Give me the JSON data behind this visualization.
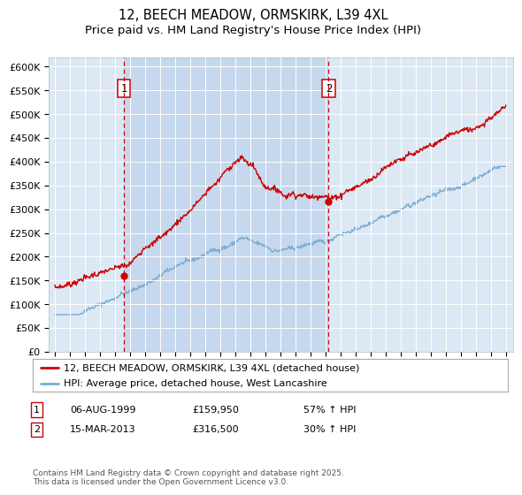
{
  "title": "12, BEECH MEADOW, ORMSKIRK, L39 4XL",
  "subtitle": "Price paid vs. HM Land Registry's House Price Index (HPI)",
  "ylim": [
    0,
    620000
  ],
  "yticks": [
    0,
    50000,
    100000,
    150000,
    200000,
    250000,
    300000,
    350000,
    400000,
    450000,
    500000,
    550000,
    600000
  ],
  "ytick_labels": [
    "£0",
    "£50K",
    "£100K",
    "£150K",
    "£200K",
    "£250K",
    "£300K",
    "£350K",
    "£400K",
    "£450K",
    "£500K",
    "£550K",
    "£600K"
  ],
  "background_color": "#dce9f5",
  "line1_color": "#cc0000",
  "line2_color": "#7aadd4",
  "shade_color": "#c5d8ed",
  "marker1_date": 1999.59,
  "marker2_date": 2013.21,
  "legend_line1": "12, BEECH MEADOW, ORMSKIRK, L39 4XL (detached house)",
  "legend_line2": "HPI: Average price, detached house, West Lancashire",
  "annotation1_date": "06-AUG-1999",
  "annotation1_price": "£159,950",
  "annotation1_hpi": "57% ↑ HPI",
  "annotation2_date": "15-MAR-2013",
  "annotation2_price": "£316,500",
  "annotation2_hpi": "30% ↑ HPI",
  "footnote": "Contains HM Land Registry data © Crown copyright and database right 2025.\nThis data is licensed under the Open Government Licence v3.0.",
  "title_fontsize": 10.5,
  "subtitle_fontsize": 9.5,
  "tick_fontsize": 8,
  "xlim_start": 1994.6,
  "xlim_end": 2025.5
}
